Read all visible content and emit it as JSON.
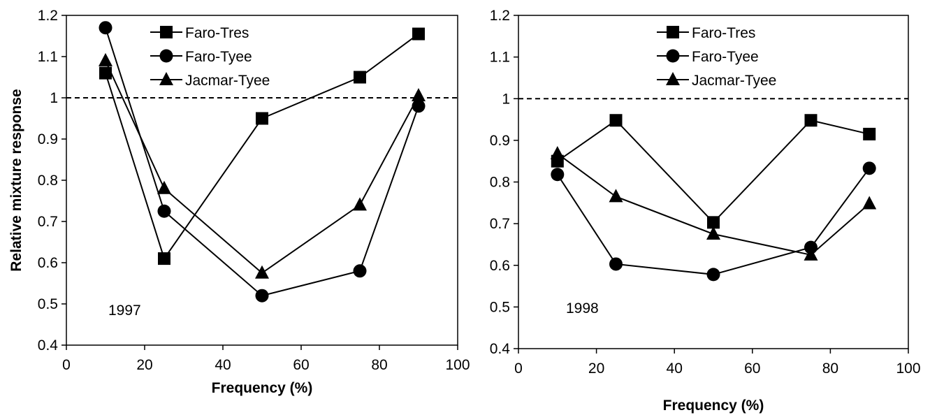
{
  "chart_data": [
    {
      "type": "line",
      "annotation": "1997",
      "xlabel": "Frequency (%)",
      "ylabel": "Relative mixture response",
      "xlim": [
        0,
        100
      ],
      "ylim": [
        0.4,
        1.2
      ],
      "xticks": [
        0,
        20,
        40,
        60,
        80,
        100
      ],
      "yticks": [
        0.4,
        0.5,
        0.6,
        0.7,
        0.8,
        0.9,
        1,
        1.1,
        1.2
      ],
      "xtick_labels": [
        "0",
        "20",
        "40",
        "60",
        "80",
        "100"
      ],
      "ytick_labels": [
        "0.4",
        "0.5",
        "0.6",
        "0.7",
        "0.8",
        "0.9",
        "1",
        "1.1",
        "1.2"
      ],
      "reference_line": 1,
      "legend_position": "top-center",
      "grid": false,
      "x": [
        10,
        25,
        50,
        75,
        90
      ],
      "series": [
        {
          "name": "Faro-Tres",
          "marker": "square",
          "values": [
            1.06,
            0.61,
            0.95,
            1.05,
            1.155
          ]
        },
        {
          "name": "Faro-Tyee",
          "marker": "circle",
          "values": [
            1.17,
            0.725,
            0.52,
            0.58,
            0.98
          ]
        },
        {
          "name": "Jacmar-Tyee",
          "marker": "triangle",
          "values": [
            1.09,
            0.78,
            0.575,
            0.74,
            1.005
          ]
        }
      ]
    },
    {
      "type": "line",
      "annotation": "1998",
      "xlabel": "Frequency (%)",
      "ylabel": "",
      "xlim": [
        0,
        100
      ],
      "ylim": [
        0.4,
        1.2
      ],
      "xticks": [
        0,
        20,
        40,
        60,
        80,
        100
      ],
      "yticks": [
        0.4,
        0.5,
        0.6,
        0.7,
        0.8,
        0.9,
        1,
        1.1,
        1.2
      ],
      "xtick_labels": [
        "0",
        "20",
        "40",
        "60",
        "80",
        "100"
      ],
      "ytick_labels": [
        "0.4",
        "0.5",
        "0.6",
        "0.7",
        "0.8",
        "0.9",
        "1",
        "1.1",
        "1.2"
      ],
      "reference_line": 1,
      "legend_position": "top-center",
      "grid": false,
      "x": [
        10,
        25,
        50,
        75,
        90
      ],
      "series": [
        {
          "name": "Faro-Tres",
          "marker": "square",
          "values": [
            0.85,
            0.948,
            0.703,
            0.948,
            0.915
          ]
        },
        {
          "name": "Faro-Tyee",
          "marker": "circle",
          "values": [
            0.818,
            0.603,
            0.578,
            0.643,
            0.833
          ]
        },
        {
          "name": "Jacmar-Tyee",
          "marker": "triangle",
          "values": [
            0.868,
            0.765,
            0.675,
            0.625,
            0.748
          ]
        }
      ]
    }
  ]
}
